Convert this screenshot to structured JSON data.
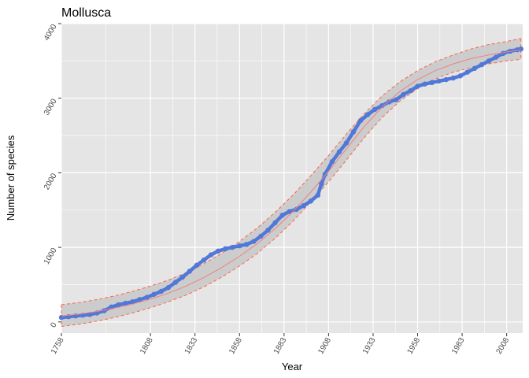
{
  "chart_data": {
    "type": "scatter",
    "title": "Mollusca",
    "xlabel": "Year",
    "ylabel": "Number of species",
    "xlim": [
      1758,
      2017
    ],
    "ylim": [
      -150,
      4000
    ],
    "x_ticks": [
      1758,
      1808,
      1833,
      1858,
      1883,
      1908,
      1933,
      1958,
      1983,
      2008
    ],
    "y_ticks": [
      0,
      1000,
      2000,
      3000,
      4000
    ],
    "grid": true,
    "colors": {
      "panel": "#e5e5e5",
      "grid": "#ffffff",
      "points": "#4f78d8",
      "fit": "#f08080",
      "band_edge": "#ff6347",
      "band_fill": "#c8c8c8"
    },
    "series": [
      {
        "kind": "observed",
        "x": [
          1758,
          1762,
          1766,
          1770,
          1774,
          1778,
          1782,
          1786,
          1790,
          1794,
          1798,
          1802,
          1806,
          1810,
          1814,
          1818,
          1822,
          1826,
          1830,
          1834,
          1838,
          1842,
          1846,
          1850,
          1854,
          1858,
          1862,
          1866,
          1870,
          1874,
          1878,
          1882,
          1886,
          1890,
          1894,
          1898,
          1902,
          1904,
          1906,
          1910,
          1914,
          1918,
          1922,
          1926,
          1930,
          1934,
          1938,
          1942,
          1946,
          1950,
          1954,
          1958,
          1962,
          1966,
          1970,
          1974,
          1978,
          1982,
          1986,
          1990,
          1994,
          1998,
          2002,
          2006,
          2010,
          2014,
          2016
        ],
        "y": [
          60,
          70,
          80,
          90,
          100,
          120,
          150,
          200,
          230,
          250,
          270,
          300,
          330,
          370,
          410,
          460,
          530,
          600,
          680,
          760,
          830,
          900,
          950,
          980,
          1000,
          1020,
          1040,
          1080,
          1150,
          1230,
          1330,
          1430,
          1480,
          1510,
          1560,
          1620,
          1700,
          1850,
          1980,
          2150,
          2280,
          2400,
          2550,
          2700,
          2780,
          2850,
          2900,
          2950,
          2980,
          3050,
          3100,
          3160,
          3190,
          3210,
          3230,
          3250,
          3270,
          3300,
          3350,
          3400,
          3450,
          3500,
          3550,
          3600,
          3630,
          3650,
          3660
        ]
      },
      {
        "kind": "fitted",
        "x": [
          1758,
          1768,
          1778,
          1788,
          1798,
          1808,
          1818,
          1828,
          1838,
          1848,
          1858,
          1868,
          1878,
          1888,
          1898,
          1908,
          1918,
          1928,
          1938,
          1948,
          1958,
          1968,
          1978,
          1988,
          1998,
          2008,
          2016
        ],
        "y": [
          80,
          105,
          140,
          185,
          240,
          305,
          385,
          480,
          595,
          730,
          880,
          1050,
          1250,
          1480,
          1740,
          2020,
          2320,
          2620,
          2880,
          3090,
          3250,
          3370,
          3460,
          3530,
          3580,
          3620,
          3650
        ]
      },
      {
        "kind": "upper-bound",
        "x": [
          1758,
          1768,
          1778,
          1788,
          1798,
          1808,
          1818,
          1828,
          1838,
          1848,
          1858,
          1868,
          1878,
          1888,
          1898,
          1908,
          1918,
          1928,
          1938,
          1948,
          1958,
          1968,
          1978,
          1988,
          1998,
          2008,
          2016
        ],
        "y": [
          230,
          260,
          300,
          350,
          410,
          480,
          560,
          660,
          780,
          920,
          1080,
          1260,
          1470,
          1700,
          1960,
          2230,
          2520,
          2790,
          3030,
          3220,
          3370,
          3490,
          3580,
          3660,
          3720,
          3760,
          3800
        ]
      },
      {
        "kind": "lower-bound",
        "x": [
          1758,
          1768,
          1778,
          1788,
          1798,
          1808,
          1818,
          1828,
          1838,
          1848,
          1858,
          1868,
          1878,
          1888,
          1898,
          1908,
          1918,
          1928,
          1938,
          1948,
          1958,
          1968,
          1978,
          1988,
          1998,
          2008,
          2016
        ],
        "y": [
          -60,
          -30,
          10,
          60,
          120,
          190,
          270,
          360,
          470,
          600,
          750,
          920,
          1120,
          1350,
          1610,
          1880,
          2170,
          2470,
          2740,
          2960,
          3130,
          3260,
          3350,
          3410,
          3460,
          3500,
          3520
        ]
      }
    ]
  }
}
